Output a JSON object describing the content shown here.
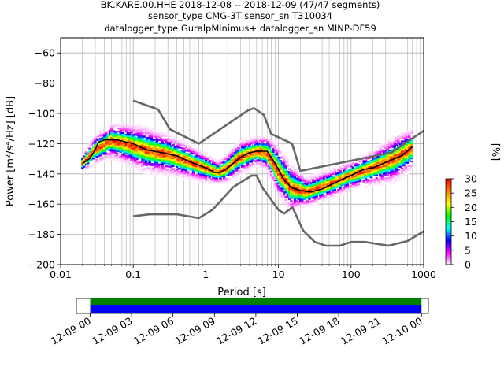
{
  "chart_data": {
    "type": "heatmap",
    "title_lines": [
      "BK.KARE.00.HHE   2018-12-08 -- 2018-12-09  (47/47 segments)",
      "sensor_type CMG-3T sensor_sn T310034",
      "datalogger_type GuralpMinimus+ datalogger_sn MINP-DF59"
    ],
    "xlabel": "Period [s]",
    "ylabel": "Power [m²/s⁴/Hz] [dB]",
    "x_scale": "log",
    "xlim": [
      0.01,
      1000
    ],
    "ylim": [
      -200,
      -50
    ],
    "x_ticks": [
      "0.01",
      "0.1",
      "1",
      "10",
      "100",
      "1000"
    ],
    "y_ticks": [
      "−200",
      "−180",
      "−160",
      "−140",
      "−120",
      "−100",
      "−80",
      "−60"
    ],
    "grid": true,
    "colorbar": {
      "label": "[%]",
      "range": [
        0,
        30
      ],
      "ticks": [
        "0",
        "5",
        "10",
        "15",
        "20",
        "25",
        "30"
      ],
      "colormap": [
        "#ffffff",
        "#ff00ff",
        "#0000ff",
        "#00ffff",
        "#00ff00",
        "#ffff00",
        "#ff8000",
        "#ff0000"
      ]
    },
    "series": [
      {
        "role": "new-high-noise-model",
        "color": "#666666",
        "points": [
          [
            0.1,
            -91.5
          ],
          [
            0.22,
            -97.4
          ],
          [
            0.32,
            -110.5
          ],
          [
            0.8,
            -120
          ],
          [
            3.8,
            -98
          ],
          [
            4.6,
            -96.5
          ],
          [
            6.3,
            -101
          ],
          [
            7.9,
            -113.5
          ],
          [
            15.4,
            -120
          ],
          [
            20,
            -138
          ],
          [
            354.8,
            -126
          ],
          [
            1000,
            -111.5
          ]
        ]
      },
      {
        "role": "new-low-noise-model",
        "color": "#666666",
        "points": [
          [
            0.1,
            -168
          ],
          [
            0.17,
            -166.7
          ],
          [
            0.4,
            -166.7
          ],
          [
            0.8,
            -169.2
          ],
          [
            1.24,
            -163.7
          ],
          [
            2.4,
            -148.6
          ],
          [
            4.3,
            -141.1
          ],
          [
            5,
            -141.1
          ],
          [
            6,
            -149
          ],
          [
            10,
            -163.8
          ],
          [
            12,
            -166.2
          ],
          [
            15.6,
            -162.1
          ],
          [
            21.9,
            -177.5
          ],
          [
            31.6,
            -185
          ],
          [
            45,
            -187.5
          ],
          [
            70,
            -187.5
          ],
          [
            101,
            -185
          ],
          [
            154,
            -185
          ],
          [
            328,
            -187.5
          ],
          [
            600,
            -184.4
          ],
          [
            1000,
            -178
          ]
        ]
      },
      {
        "role": "mode",
        "color": "#000000",
        "points": [
          [
            0.02,
            -133
          ],
          [
            0.025,
            -130
          ],
          [
            0.03,
            -124
          ],
          [
            0.033,
            -119
          ],
          [
            0.04,
            -117.5
          ],
          [
            0.06,
            -117.5
          ],
          [
            0.08,
            -119
          ],
          [
            0.1,
            -120
          ],
          [
            0.15,
            -124
          ],
          [
            0.25,
            -126
          ],
          [
            0.4,
            -128
          ],
          [
            0.6,
            -132
          ],
          [
            1,
            -136
          ],
          [
            1.3,
            -139
          ],
          [
            1.6,
            -139
          ],
          [
            2,
            -136
          ],
          [
            3,
            -129
          ],
          [
            4,
            -126
          ],
          [
            5,
            -125
          ],
          [
            7,
            -125
          ],
          [
            9,
            -133
          ],
          [
            12,
            -144
          ],
          [
            15,
            -149
          ],
          [
            20,
            -151
          ],
          [
            28,
            -152
          ],
          [
            40,
            -150
          ],
          [
            60,
            -146
          ],
          [
            80,
            -143
          ],
          [
            100,
            -141
          ],
          [
            150,
            -137
          ],
          [
            200,
            -136
          ],
          [
            280,
            -133
          ],
          [
            350,
            -131
          ],
          [
            500,
            -128
          ],
          [
            700,
            -122
          ]
        ]
      }
    ],
    "density": [
      {
        "period": 0.02,
        "center": -133,
        "spread": 3
      },
      {
        "period": 0.03,
        "center": -124,
        "spread": 5
      },
      {
        "period": 0.05,
        "center": -118,
        "spread": 6
      },
      {
        "period": 0.08,
        "center": -120,
        "spread": 7
      },
      {
        "period": 0.15,
        "center": -124,
        "spread": 8
      },
      {
        "period": 0.3,
        "center": -127,
        "spread": 7
      },
      {
        "period": 0.6,
        "center": -132,
        "spread": 6
      },
      {
        "period": 1,
        "center": -136,
        "spread": 5
      },
      {
        "period": 1.5,
        "center": -139,
        "spread": 4
      },
      {
        "period": 2,
        "center": -136,
        "spread": 5
      },
      {
        "period": 3,
        "center": -129,
        "spread": 6
      },
      {
        "period": 5,
        "center": -125,
        "spread": 5
      },
      {
        "period": 7,
        "center": -126,
        "spread": 6
      },
      {
        "period": 10,
        "center": -138,
        "spread": 9
      },
      {
        "period": 15,
        "center": -149,
        "spread": 8
      },
      {
        "period": 25,
        "center": -152,
        "spread": 5
      },
      {
        "period": 50,
        "center": -147,
        "spread": 5
      },
      {
        "period": 100,
        "center": -141,
        "spread": 5
      },
      {
        "period": 200,
        "center": -136,
        "spread": 6
      },
      {
        "period": 400,
        "center": -130,
        "spread": 8
      },
      {
        "period": 700,
        "center": -123,
        "spread": 7
      }
    ]
  },
  "coverage": {
    "xlim_hours": [
      -1,
      24.5
    ],
    "bar_hours": [
      0,
      24
    ],
    "colors": {
      "data": "#0000ff",
      "gap_free": "#008000"
    },
    "tick_labels": [
      "12-09 00",
      "12-09 03",
      "12-09 06",
      "12-09 09",
      "12-09 12",
      "12-09 15",
      "12-09 18",
      "12-09 21",
      "12-10 00"
    ]
  }
}
